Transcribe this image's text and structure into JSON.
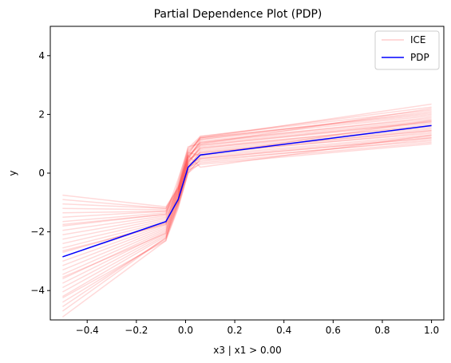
{
  "chart_data": {
    "type": "line",
    "title": "Partial Dependence Plot (PDP)",
    "xlabel": "x3 | x1 > 0.00",
    "ylabel": "y",
    "xlim": [
      -0.55,
      1.05
    ],
    "ylim": [
      -5,
      5
    ],
    "xticks": [
      -0.4,
      -0.2,
      0.0,
      0.2,
      0.4,
      0.6,
      0.8,
      1.0
    ],
    "xtick_labels": [
      "−0.4",
      "−0.2",
      "0.0",
      "0.2",
      "0.4",
      "0.6",
      "0.8",
      "1.0"
    ],
    "yticks": [
      -4,
      -2,
      0,
      2,
      4
    ],
    "ytick_labels": [
      "−4",
      "−2",
      "0",
      "2",
      "4"
    ],
    "legend": {
      "position": "top-right",
      "entries": [
        "ICE",
        "PDP"
      ]
    },
    "grid": false,
    "x": [
      -0.5,
      -0.08,
      -0.03,
      0.01,
      0.06,
      1.0
    ],
    "series": [
      {
        "name": "PDP",
        "color": "#0000ff",
        "values": [
          -2.85,
          -1.65,
          -0.9,
          0.2,
          0.62,
          1.62
        ]
      },
      {
        "name": "ICE",
        "color": "#ff0000",
        "opacity": 0.15,
        "lines": [
          [
            -4.9,
            -2.3,
            -1.2,
            0.0,
            0.35,
            1.05
          ],
          [
            -4.7,
            -2.2,
            -1.1,
            0.05,
            0.45,
            1.1
          ],
          [
            -4.55,
            -2.2,
            -1.05,
            0.1,
            0.3,
            1.0
          ],
          [
            -4.4,
            -2.25,
            -1.15,
            0.0,
            0.5,
            1.2
          ],
          [
            -4.2,
            -2.15,
            -1.0,
            0.15,
            0.55,
            1.25
          ],
          [
            -4.05,
            -2.1,
            -1.05,
            0.2,
            0.4,
            1.15
          ],
          [
            -3.9,
            -2.05,
            -0.95,
            0.1,
            0.6,
            1.3
          ],
          [
            -3.75,
            -2.0,
            -1.0,
            0.25,
            0.7,
            1.35
          ],
          [
            -3.6,
            -1.95,
            -0.9,
            0.3,
            0.5,
            1.2
          ],
          [
            -3.45,
            -1.9,
            -0.95,
            0.15,
            0.75,
            1.45
          ],
          [
            -3.3,
            -1.85,
            -0.85,
            0.35,
            0.8,
            1.5
          ],
          [
            -3.15,
            -1.8,
            -0.9,
            0.2,
            0.65,
            1.4
          ],
          [
            -3.0,
            -1.75,
            -0.8,
            0.4,
            0.85,
            1.55
          ],
          [
            -2.85,
            -1.7,
            -0.85,
            0.3,
            0.9,
            1.6
          ],
          [
            -2.7,
            -1.7,
            -0.75,
            0.45,
            0.7,
            1.45
          ],
          [
            -2.55,
            -1.65,
            -0.8,
            0.35,
            0.95,
            1.7
          ],
          [
            -2.4,
            -1.6,
            -0.7,
            0.5,
            1.0,
            1.75
          ],
          [
            -2.25,
            -1.55,
            -0.75,
            0.4,
            0.85,
            1.65
          ],
          [
            -2.1,
            -1.5,
            -0.65,
            0.55,
            1.05,
            1.8
          ],
          [
            -1.95,
            -1.45,
            -0.7,
            0.45,
            1.1,
            1.85
          ],
          [
            -1.8,
            -1.4,
            -0.6,
            0.6,
            0.95,
            1.75
          ],
          [
            -1.65,
            -1.35,
            -0.65,
            0.5,
            1.15,
            1.95
          ],
          [
            -1.5,
            -1.3,
            -0.55,
            0.65,
            1.2,
            2.0
          ],
          [
            -1.35,
            -1.3,
            -0.6,
            0.55,
            1.05,
            1.9
          ],
          [
            -1.2,
            -1.25,
            -0.5,
            0.7,
            1.2,
            2.05
          ],
          [
            -1.05,
            -1.2,
            -0.55,
            0.6,
            1.25,
            2.15
          ],
          [
            -0.9,
            -1.2,
            -0.45,
            0.75,
            1.15,
            2.1
          ],
          [
            -0.75,
            -1.15,
            -0.5,
            0.85,
            1.25,
            2.25
          ],
          [
            -1.75,
            -1.4,
            -0.2,
            0.8,
            1.2,
            2.35
          ],
          [
            -3.55,
            -2.05,
            -0.35,
            0.7,
            0.6,
            1.8
          ],
          [
            -2.65,
            -1.75,
            -0.3,
            0.9,
            1.0,
            2.2
          ],
          [
            -4.25,
            -2.3,
            -0.5,
            0.6,
            0.2,
            1.3
          ]
        ]
      }
    ]
  }
}
